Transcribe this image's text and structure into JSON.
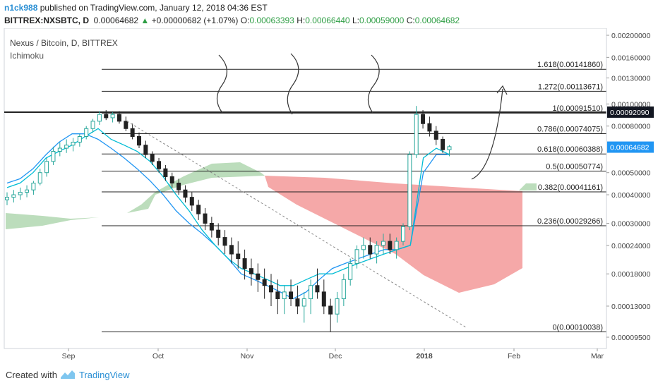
{
  "header": {
    "author": "n1ck988",
    "published_text": "published on TradingView.com, January 12, 2018 04:36 EST",
    "symbol_line": "BITTREX:NXSBTC, D",
    "last": "0.00064682",
    "change": "+0.00000682 (+1.07%)",
    "open_label": "O:",
    "open": "0.00063393",
    "high_label": "H:",
    "high": "0.00066440",
    "low_label": "L:",
    "low": "0.00059000",
    "close_label": "C:",
    "close": "0.00064682"
  },
  "legend": {
    "title": "Nexus / Bitcoin, D, BITTREX",
    "indicator": "Ichimoku"
  },
  "footer": {
    "created_with": "Created with",
    "brand": "TradingView"
  },
  "colors": {
    "bull": "#26a69a",
    "bear": "#222222",
    "tenkan": "#00bcd4",
    "kijun": "#2196f3",
    "cloud_red": "#f28b8b",
    "cloud_green": "#8fc78f",
    "price_tag_dark": "#131722",
    "price_tag_blue": "#2196f3"
  },
  "chart_data": {
    "type": "candlestick",
    "x_axis_ticks": [
      "Sep",
      "Oct",
      "Nov",
      "Dec",
      "2018",
      "Feb",
      "Mar"
    ],
    "y_axis_ticks": [
      "0.00200000",
      "0.00160000",
      "0.00130000",
      "0.00100000",
      "0.00080000",
      "0.00050000",
      "0.00040000",
      "0.00030000",
      "0.00024000",
      "0.00018000",
      "0.00013000",
      "0.00009500"
    ],
    "y_axis_values": [
      0.002,
      0.0016,
      0.0013,
      0.001,
      0.0008,
      0.0005,
      0.0004,
      0.0003,
      0.00024,
      0.00018,
      0.00013,
      9.5e-05
    ],
    "y_scale": "log",
    "price_tags": [
      {
        "label": "0.00092090",
        "value": 0.0009209
      },
      {
        "label": "0.00064682",
        "value": 0.00064682
      }
    ],
    "fibonacci": [
      {
        "label": "1.618(0.00141860)",
        "value": 0.0014186
      },
      {
        "label": "1.272(0.00113671)",
        "value": 0.00113671
      },
      {
        "label": "1(0.00091510)",
        "value": 0.0009151
      },
      {
        "label": "0.786(0.00074075)",
        "value": 0.00074075
      },
      {
        "label": "0.618(0.00060388)",
        "value": 0.00060388
      },
      {
        "label": "0.5(0.00050774)",
        "value": 0.00050774
      },
      {
        "label": "0.382(0.00041161)",
        "value": 0.00041161
      },
      {
        "label": "0.236(0.00029266)",
        "value": 0.00029266
      },
      {
        "label": "0(0.00010038)",
        "value": 0.00010038
      }
    ],
    "candles": [
      [
        0.00038,
        0.00041,
        0.00036,
        0.00039
      ],
      [
        0.00039,
        0.00042,
        0.00037,
        0.0004
      ],
      [
        0.0004,
        0.00043,
        0.00038,
        0.00041
      ],
      [
        0.00041,
        0.00044,
        0.00039,
        0.00042
      ],
      [
        0.00042,
        0.00046,
        0.0004,
        0.00045
      ],
      [
        0.00045,
        0.00052,
        0.00044,
        0.0005
      ],
      [
        0.0005,
        0.00058,
        0.00048,
        0.00056
      ],
      [
        0.00056,
        0.00065,
        0.00054,
        0.00062
      ],
      [
        0.00062,
        0.00068,
        0.00059,
        0.00064
      ],
      [
        0.00064,
        0.0007,
        0.00061,
        0.00066
      ],
      [
        0.00066,
        0.00071,
        0.00062,
        0.00068
      ],
      [
        0.00068,
        0.00074,
        0.00065,
        0.00072
      ],
      [
        0.00072,
        0.0008,
        0.0007,
        0.00078
      ],
      [
        0.00078,
        0.00086,
        0.00075,
        0.00084
      ],
      [
        0.00084,
        0.00093,
        0.00081,
        0.0009
      ],
      [
        0.0009,
        0.00094,
        0.00085,
        0.00087
      ],
      [
        0.00087,
        0.00092,
        0.00083,
        0.0009
      ],
      [
        0.0009,
        0.00093,
        0.00082,
        0.00084
      ],
      [
        0.00084,
        0.00088,
        0.00076,
        0.00078
      ],
      [
        0.00078,
        0.00082,
        0.0007,
        0.00072
      ],
      [
        0.00072,
        0.00075,
        0.00064,
        0.00066
      ],
      [
        0.00066,
        0.00069,
        0.00058,
        0.0006
      ],
      [
        0.0006,
        0.00062,
        0.00054,
        0.00056
      ],
      [
        0.00056,
        0.00058,
        0.0005,
        0.00052
      ],
      [
        0.00052,
        0.00054,
        0.00046,
        0.00048
      ],
      [
        0.00048,
        0.0005,
        0.00043,
        0.00045
      ],
      [
        0.00045,
        0.00047,
        0.0004,
        0.00042
      ],
      [
        0.00042,
        0.00044,
        0.00037,
        0.00039
      ],
      [
        0.00039,
        0.00041,
        0.00034,
        0.00036
      ],
      [
        0.00036,
        0.00038,
        0.00031,
        0.00033
      ],
      [
        0.00033,
        0.00035,
        0.00028,
        0.0003
      ],
      [
        0.0003,
        0.00032,
        0.00026,
        0.00028
      ],
      [
        0.00028,
        0.0003,
        0.00024,
        0.00026
      ],
      [
        0.00026,
        0.00028,
        0.00022,
        0.00024
      ],
      [
        0.00024,
        0.00026,
        0.0002,
        0.00022
      ],
      [
        0.00022,
        0.00025,
        0.00019,
        0.00021
      ],
      [
        0.00021,
        0.00023,
        0.00017,
        0.00019
      ],
      [
        0.00019,
        0.00021,
        0.00016,
        0.00018
      ],
      [
        0.00018,
        0.0002,
        0.00015,
        0.00017
      ],
      [
        0.00017,
        0.00019,
        0.00014,
        0.00016
      ],
      [
        0.00016,
        0.00018,
        0.00013,
        0.00015
      ],
      [
        0.00015,
        0.00017,
        0.00012,
        0.00014
      ],
      [
        0.00014,
        0.00016,
        0.00012,
        0.00015
      ],
      [
        0.00015,
        0.00017,
        0.00013,
        0.00014
      ],
      [
        0.00014,
        0.00016,
        0.00012,
        0.00013
      ],
      [
        0.00013,
        0.00015,
        0.00011,
        0.00014
      ],
      [
        0.00014,
        0.00017,
        0.00012,
        0.00016
      ],
      [
        0.00016,
        0.00019,
        0.00014,
        0.00015
      ],
      [
        0.00015,
        0.00017,
        0.00012,
        0.00013
      ],
      [
        0.00013,
        0.00014,
        0.0001,
        0.00012
      ],
      [
        0.00012,
        0.00015,
        0.00011,
        0.00014
      ],
      [
        0.00014,
        0.00018,
        0.00013,
        0.00017
      ],
      [
        0.00017,
        0.00021,
        0.00016,
        0.0002
      ],
      [
        0.0002,
        0.00024,
        0.00019,
        0.00023
      ],
      [
        0.00023,
        0.00026,
        0.00021,
        0.00024
      ],
      [
        0.00024,
        0.00026,
        0.00021,
        0.00022
      ],
      [
        0.00022,
        0.00025,
        0.0002,
        0.00024
      ],
      [
        0.00024,
        0.00027,
        0.00022,
        0.00025
      ],
      [
        0.00025,
        0.00027,
        0.00022,
        0.00023
      ],
      [
        0.00023,
        0.00026,
        0.00021,
        0.00025
      ],
      [
        0.00025,
        0.0003,
        0.00024,
        0.00029
      ],
      [
        0.00029,
        0.00062,
        0.00028,
        0.0006
      ],
      [
        0.0006,
        0.00098,
        0.00058,
        0.0009
      ],
      [
        0.0009,
        0.00094,
        0.00078,
        0.00082
      ],
      [
        0.00082,
        0.00088,
        0.00072,
        0.00076
      ],
      [
        0.00076,
        0.0008,
        0.00066,
        0.0007
      ],
      [
        0.0007,
        0.00072,
        0.00061,
        0.00063
      ],
      [
        0.00063,
        0.00066,
        0.00059,
        0.00065
      ]
    ],
    "tenkan": [
      0.00043,
      0.00045,
      0.0005,
      0.00058,
      0.00062,
      0.00066,
      0.00072,
      0.00078,
      0.0007,
      0.00066,
      0.00062,
      0.00056,
      0.00048,
      0.0004,
      0.00034,
      0.00028,
      0.00024,
      0.00021,
      0.00019,
      0.00018,
      0.00017,
      0.00016,
      0.00016,
      0.00017,
      0.00018,
      0.00018,
      0.00019,
      0.0002,
      0.00021,
      0.00022,
      0.00023,
      0.00024,
      0.00058,
      0.00064,
      0.0006
    ],
    "kijun": [
      0.00045,
      0.00047,
      0.00052,
      0.0006,
      0.00068,
      0.00074,
      0.00074,
      0.0007,
      0.00064,
      0.00058,
      0.00052,
      0.00046,
      0.0004,
      0.00034,
      0.0003,
      0.00027,
      0.00024,
      0.00021,
      0.00018,
      0.00017,
      0.00016,
      0.00015,
      0.00014,
      0.00015,
      0.00017,
      0.00019,
      0.0002,
      0.00021,
      0.00022,
      0.00023,
      0.00023,
      0.00024,
      0.0005,
      0.0006,
      0.0006
    ]
  }
}
